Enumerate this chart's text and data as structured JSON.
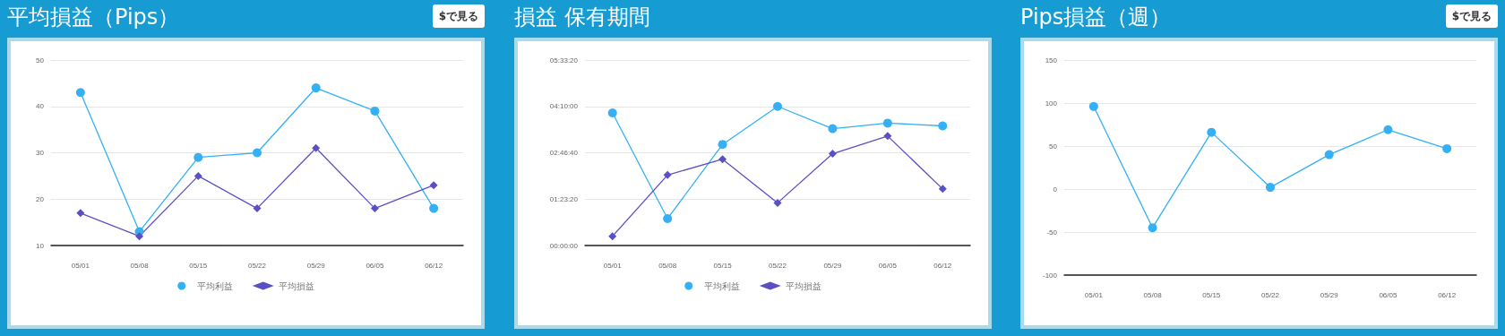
{
  "chart_data": [
    {
      "type": "line",
      "title": "平均損益（Pips）",
      "annotations": [
        "$で見る"
      ],
      "categories": [
        "05/01",
        "05/08",
        "05/15",
        "05/22",
        "05/29",
        "06/05",
        "06/12"
      ],
      "series": [
        {
          "name": "平均利益",
          "color": "#35b0f5",
          "marker": "circle",
          "values": [
            43,
            13,
            29,
            30,
            44,
            39,
            18
          ]
        },
        {
          "name": "平均損益",
          "color": "#5b4fc4",
          "marker": "diamond",
          "values": [
            17,
            12,
            25,
            18,
            31,
            18,
            23
          ]
        }
      ],
      "ylim": [
        10,
        50
      ],
      "yticks": [
        10,
        20,
        30,
        40,
        50
      ],
      "grid": "y",
      "legend": "bottom"
    },
    {
      "type": "line",
      "title": "損益 保有期間",
      "categories": [
        "05/01",
        "05/08",
        "05/15",
        "05/22",
        "05/29",
        "06/05",
        "06/12"
      ],
      "series": [
        {
          "name": "平均利益",
          "color": "#35b0f5",
          "marker": "circle",
          "values": [
            14300,
            2900,
            10900,
            15000,
            12600,
            13200,
            12900
          ]
        },
        {
          "name": "平均損益",
          "color": "#5b4fc4",
          "marker": "diamond",
          "values": [
            1000,
            7600,
            9300,
            4600,
            9900,
            11800,
            6100
          ]
        }
      ],
      "ylim": [
        0,
        20000
      ],
      "yticks": [
        {
          "value": 0,
          "label": "00:00:00"
        },
        {
          "value": 5000,
          "label": "01:23:20"
        },
        {
          "value": 10000,
          "label": "02:46:40"
        },
        {
          "value": 15000,
          "label": "04:10:00"
        },
        {
          "value": 20000,
          "label": "05:33:20"
        }
      ],
      "grid": "y",
      "legend": "bottom"
    },
    {
      "type": "line",
      "title": "Pips損益（週）",
      "annotations": [
        "$で見る"
      ],
      "categories": [
        "05/01",
        "05/08",
        "05/15",
        "05/22",
        "05/29",
        "06/05",
        "06/12"
      ],
      "series": [
        {
          "color": "#35b0f5",
          "marker": "circle",
          "values": [
            96,
            -45,
            66,
            2,
            40,
            69,
            47
          ]
        }
      ],
      "ylim": [
        -100,
        150
      ],
      "yticks": [
        -100,
        -50,
        0,
        50,
        100,
        150
      ],
      "grid": "y",
      "legend": false
    }
  ]
}
